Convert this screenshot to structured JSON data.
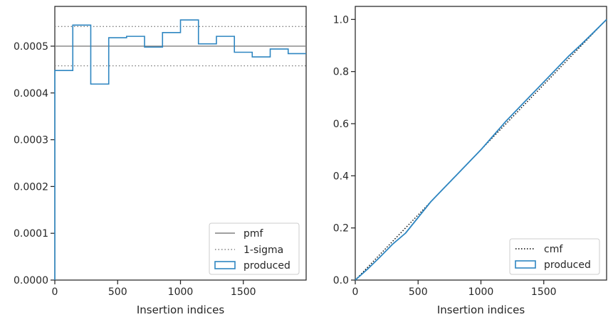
{
  "chart_data": [
    {
      "type": "histogram-step",
      "xlabel": "Insertion indices",
      "ylabel": "",
      "xlim": [
        0,
        2000
      ],
      "ylim": [
        0,
        0.000585
      ],
      "xticks": [
        0,
        500,
        1000,
        1500
      ],
      "xtick_labels": [
        "0",
        "500",
        "1000",
        "1500"
      ],
      "yticks": [
        0,
        0.0001,
        0.0002,
        0.0003,
        0.0004,
        0.0005
      ],
      "ytick_labels": [
        "0.0000",
        "0.0001",
        "0.0002",
        "0.0003",
        "0.0004",
        "0.0005"
      ],
      "bin_edges": [
        0,
        143,
        286,
        429,
        571,
        714,
        857,
        1000,
        1143,
        1286,
        1429,
        1571,
        1714,
        1857,
        2000
      ],
      "series": [
        {
          "name": "produced",
          "style": "step",
          "color": "#2e86c1",
          "values": [
            0.000448,
            0.000545,
            0.000419,
            0.000518,
            0.000521,
            0.000498,
            0.000529,
            0.000556,
            0.000505,
            0.000521,
            0.000487,
            0.000477,
            0.000494,
            0.000484
          ]
        }
      ],
      "lines": [
        {
          "name": "pmf",
          "y": 0.0005,
          "color": "#808080",
          "style": "solid"
        },
        {
          "name": "1-sigma",
          "y": 0.000458,
          "color": "#808080",
          "style": "dotted"
        },
        {
          "name": "1-sigma",
          "y": 0.000542,
          "color": "#808080",
          "style": "dotted",
          "legend": false
        }
      ],
      "legend": {
        "position": "bottom-right",
        "entries": [
          "pmf",
          "1-sigma",
          "produced"
        ]
      }
    },
    {
      "type": "line",
      "xlabel": "Insertion indices",
      "ylabel": "",
      "xlim": [
        0,
        2000
      ],
      "ylim": [
        0,
        1.05
      ],
      "xticks": [
        0,
        500,
        1000,
        1500
      ],
      "xtick_labels": [
        "0",
        "500",
        "1000",
        "1500"
      ],
      "yticks": [
        0,
        0.2,
        0.4,
        0.6,
        0.8,
        1.0
      ],
      "ytick_labels": [
        "0.0",
        "0.2",
        "0.4",
        "0.6",
        "0.8",
        "1.0"
      ],
      "series": [
        {
          "name": "cmf",
          "style": "dotted",
          "color": "#000000",
          "x": [
            0,
            2000
          ],
          "y": [
            0,
            1.0
          ]
        },
        {
          "name": "produced",
          "style": "step",
          "color": "#2e86c1",
          "x": [
            0,
            100,
            200,
            300,
            400,
            500,
            600,
            700,
            800,
            900,
            1000,
            1100,
            1200,
            1300,
            1400,
            1500,
            1600,
            1700,
            1800,
            1900,
            2000
          ],
          "y": [
            0,
            0.043,
            0.09,
            0.139,
            0.18,
            0.24,
            0.3,
            0.35,
            0.4,
            0.45,
            0.5,
            0.555,
            0.61,
            0.66,
            0.71,
            0.76,
            0.81,
            0.86,
            0.905,
            0.952,
            1.0
          ]
        }
      ],
      "legend": {
        "position": "bottom-right",
        "entries": [
          "cmf",
          "produced"
        ]
      }
    }
  ]
}
